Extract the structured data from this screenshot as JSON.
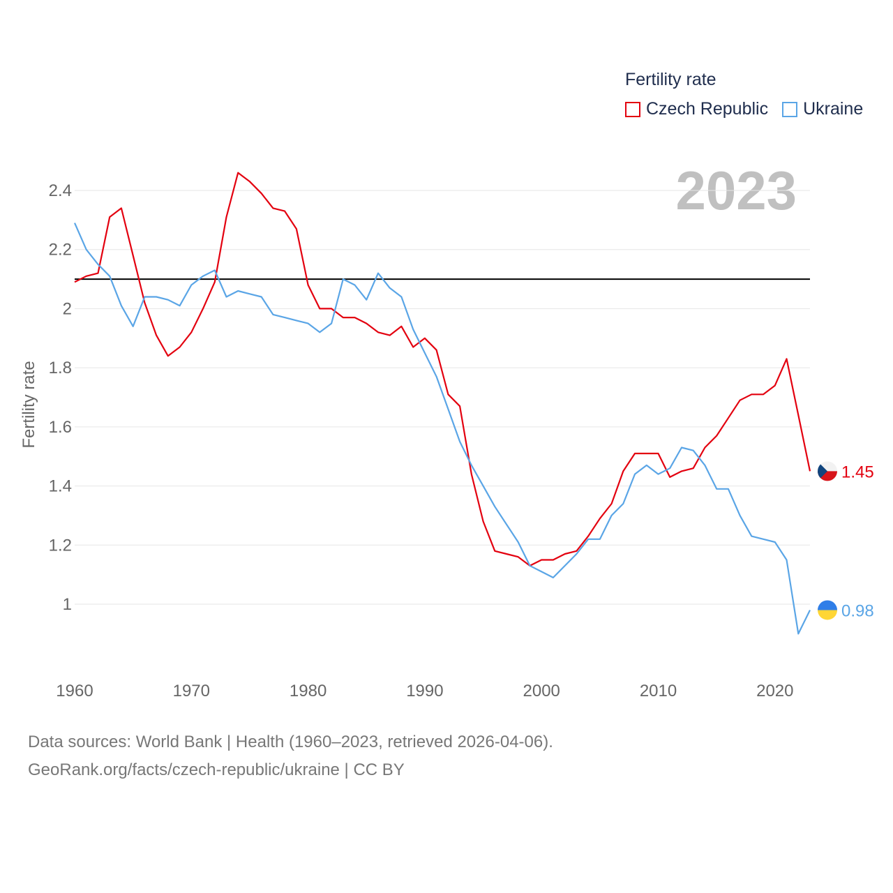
{
  "legend": {
    "title": "Fertility rate",
    "items": [
      {
        "label": "Czech Republic",
        "color": "#e3000f"
      },
      {
        "label": "Ukraine",
        "color": "#5aa5e6"
      }
    ]
  },
  "year_label": "2023",
  "footer": {
    "line1": "Data sources: World Bank | Health (1960–2023, retrieved 2026-04-06).",
    "line2": "GeoRank.org/facts/czech-republic/ukraine | CC BY"
  },
  "chart_data": {
    "type": "line",
    "title": "Fertility rate",
    "xlabel": "",
    "ylabel": "Fertility rate",
    "xlim": [
      1960,
      2023
    ],
    "ylim": [
      0.85,
      2.52
    ],
    "x_ticks": [
      1960,
      1970,
      1980,
      1990,
      2000,
      2010,
      2020
    ],
    "y_ticks": [
      1,
      1.2,
      1.4,
      1.6,
      1.8,
      2,
      2.2,
      2.4
    ],
    "y_tick_labels": [
      "1",
      "1.2",
      "1.4",
      "1.6",
      "1.8",
      "2",
      "2.2",
      "2.4"
    ],
    "reference_line": 2.1,
    "x": [
      1960,
      1961,
      1962,
      1963,
      1964,
      1965,
      1966,
      1967,
      1968,
      1969,
      1970,
      1971,
      1972,
      1973,
      1974,
      1975,
      1976,
      1977,
      1978,
      1979,
      1980,
      1981,
      1982,
      1983,
      1984,
      1985,
      1986,
      1987,
      1988,
      1989,
      1990,
      1991,
      1992,
      1993,
      1994,
      1995,
      1996,
      1997,
      1998,
      1999,
      2000,
      2001,
      2002,
      2003,
      2004,
      2005,
      2006,
      2007,
      2008,
      2009,
      2010,
      2011,
      2012,
      2013,
      2014,
      2015,
      2016,
      2017,
      2018,
      2019,
      2020,
      2021,
      2022,
      2023
    ],
    "series": [
      {
        "name": "Czech Republic",
        "color": "#e3000f",
        "end_label": "1.45",
        "values": [
          2.09,
          2.11,
          2.12,
          2.31,
          2.34,
          2.18,
          2.02,
          1.91,
          1.84,
          1.87,
          1.92,
          2.0,
          2.09,
          2.31,
          2.46,
          2.43,
          2.39,
          2.34,
          2.33,
          2.27,
          2.08,
          2.0,
          2.0,
          1.97,
          1.97,
          1.95,
          1.92,
          1.91,
          1.94,
          1.87,
          1.9,
          1.86,
          1.71,
          1.67,
          1.44,
          1.28,
          1.18,
          1.17,
          1.16,
          1.13,
          1.15,
          1.15,
          1.17,
          1.18,
          1.23,
          1.29,
          1.34,
          1.45,
          1.51,
          1.51,
          1.51,
          1.43,
          1.45,
          1.46,
          1.53,
          1.57,
          1.63,
          1.69,
          1.71,
          1.71,
          1.74,
          1.83,
          1.64,
          1.45
        ]
      },
      {
        "name": "Ukraine",
        "color": "#5aa5e6",
        "end_label": "0.98",
        "values": [
          2.29,
          2.2,
          2.15,
          2.11,
          2.01,
          1.94,
          2.04,
          2.04,
          2.03,
          2.01,
          2.08,
          2.11,
          2.13,
          2.04,
          2.06,
          2.05,
          2.04,
          1.98,
          1.97,
          1.96,
          1.95,
          1.92,
          1.95,
          2.1,
          2.08,
          2.03,
          2.12,
          2.07,
          2.04,
          1.93,
          1.85,
          1.77,
          1.66,
          1.55,
          1.47,
          1.4,
          1.33,
          1.27,
          1.21,
          1.13,
          1.11,
          1.09,
          1.13,
          1.17,
          1.22,
          1.22,
          1.3,
          1.34,
          1.44,
          1.47,
          1.44,
          1.46,
          1.53,
          1.52,
          1.47,
          1.39,
          1.39,
          1.3,
          1.23,
          1.22,
          1.21,
          1.15,
          0.9,
          0.98
        ]
      }
    ]
  }
}
